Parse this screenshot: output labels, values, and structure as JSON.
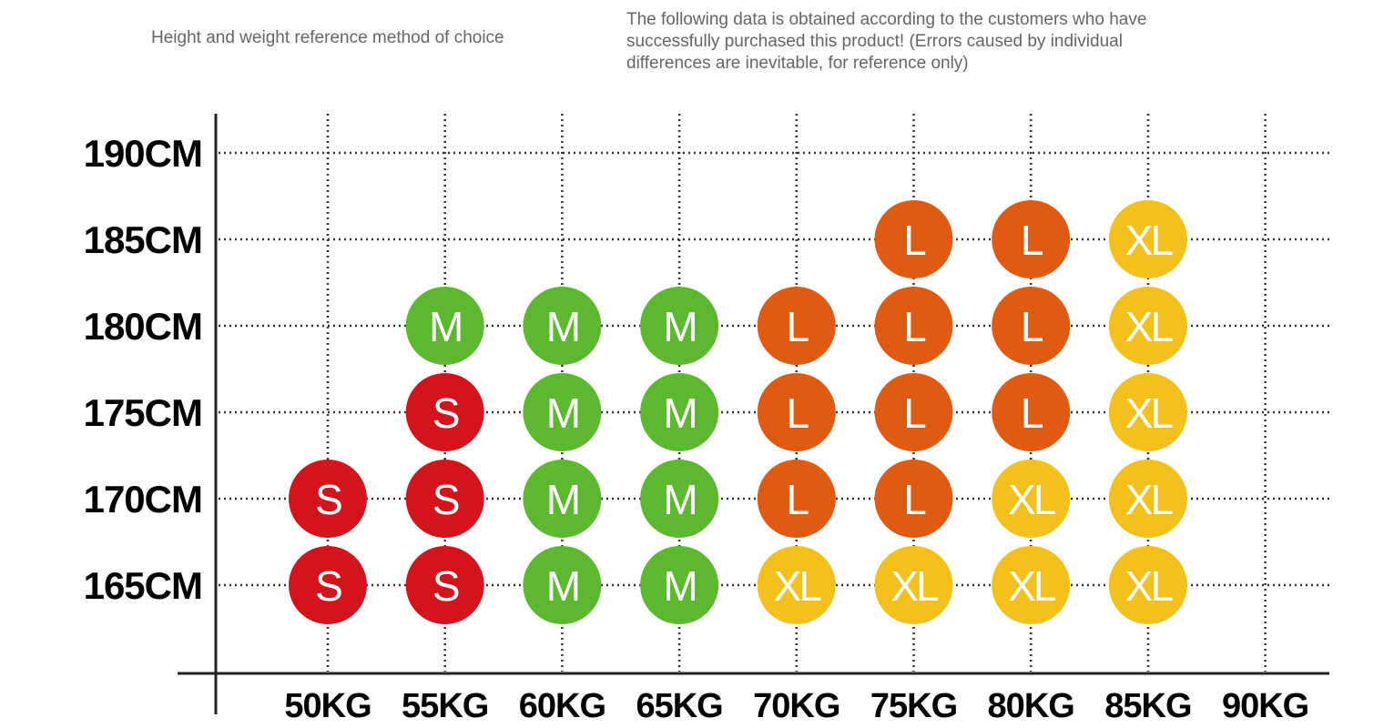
{
  "header": {
    "title": "Height and weight reference method of choice",
    "note": "The following data is obtained according to the customers who have successfully purchased this product! (Errors caused by individual differences are inevitable, for reference only)"
  },
  "size_colors": {
    "S": "#d3141c",
    "M": "#5cb82e",
    "L": "#e05a12",
    "XL": "#f4c11c"
  },
  "weights": [
    "50KG",
    "55KG",
    "60KG",
    "65KG",
    "70KG",
    "75KG",
    "80KG",
    "85KG",
    "90KG"
  ],
  "rows": [
    {
      "height": "190CM",
      "sizes": [
        null,
        null,
        null,
        null,
        null,
        null,
        null,
        null,
        null
      ]
    },
    {
      "height": "185CM",
      "sizes": [
        null,
        null,
        null,
        null,
        null,
        "L",
        "L",
        "XL",
        null
      ]
    },
    {
      "height": "180CM",
      "sizes": [
        null,
        "M",
        "M",
        "M",
        "L",
        "L",
        "L",
        "XL",
        null
      ]
    },
    {
      "height": "175CM",
      "sizes": [
        null,
        "S",
        "M",
        "M",
        "L",
        "L",
        "L",
        "XL",
        null
      ]
    },
    {
      "height": "170CM",
      "sizes": [
        "S",
        "S",
        "M",
        "M",
        "L",
        "L",
        "XL",
        "XL",
        null
      ]
    },
    {
      "height": "165CM",
      "sizes": [
        "S",
        "S",
        "M",
        "M",
        "XL",
        "XL",
        "XL",
        "XL",
        null
      ]
    }
  ]
}
